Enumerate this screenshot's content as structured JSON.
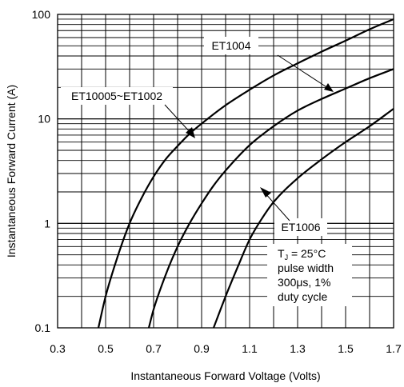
{
  "chart_data": {
    "type": "line",
    "title": "",
    "xlabel": "Instantaneous Forward Voltage (Volts)",
    "ylabel": "Instantaneous Forward Current (A)",
    "xlim": [
      0.3,
      1.7
    ],
    "ylim": [
      0.1,
      100
    ],
    "x_scale": "linear",
    "y_scale": "log",
    "grid": true,
    "x_ticks": [
      "0.3",
      "0.5",
      "0.7",
      "0.9",
      "1.1",
      "1.3",
      "1.5",
      "1.7"
    ],
    "y_ticks": [
      "0.1",
      "1",
      "10",
      "100"
    ],
    "series": [
      {
        "name": "ET10005~ET1002",
        "x": [
          0.47,
          0.5,
          0.55,
          0.6,
          0.65,
          0.7,
          0.75,
          0.8,
          0.85,
          0.9,
          1.0,
          1.1,
          1.2,
          1.3,
          1.4,
          1.5,
          1.6,
          1.7
        ],
        "y": [
          0.1,
          0.2,
          0.48,
          1.0,
          1.75,
          2.8,
          4.1,
          5.5,
          7.2,
          9.0,
          13.5,
          19,
          26,
          34,
          44,
          56,
          72,
          90
        ]
      },
      {
        "name": "ET1004",
        "x": [
          0.68,
          0.7,
          0.75,
          0.8,
          0.85,
          0.9,
          0.95,
          1.0,
          1.1,
          1.2,
          1.3,
          1.4,
          1.5,
          1.6,
          1.7
        ],
        "y": [
          0.1,
          0.15,
          0.32,
          0.6,
          1.0,
          1.55,
          2.3,
          3.2,
          5.6,
          8.5,
          12,
          15.5,
          19.5,
          24.5,
          30
        ]
      },
      {
        "name": "ET1006",
        "x": [
          0.95,
          1.0,
          1.05,
          1.1,
          1.15,
          1.2,
          1.3,
          1.4,
          1.5,
          1.6,
          1.7
        ],
        "y": [
          0.1,
          0.2,
          0.38,
          0.7,
          1.1,
          1.6,
          2.7,
          4.1,
          6.0,
          8.5,
          12.5
        ]
      }
    ],
    "annotations": [
      {
        "text": "ET1004",
        "target_series": "ET1004"
      },
      {
        "text": "ET10005~ET1002",
        "target_series": "ET10005~ET1002"
      },
      {
        "text": "ET1006",
        "target_series": "ET1006"
      }
    ],
    "conditions": {
      "line1_prefix": "T",
      "line1_sub": "J",
      "line1_rest": " = 25°C",
      "line2": "pulse width",
      "line3": "300μs, 1%",
      "line4": "duty cycle"
    }
  }
}
